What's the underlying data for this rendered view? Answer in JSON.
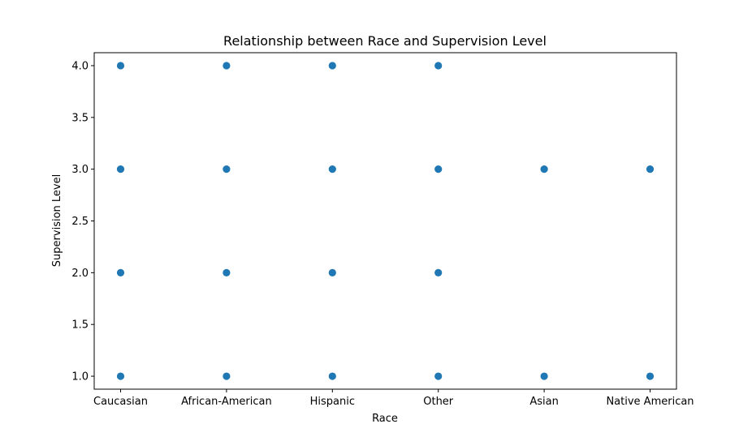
{
  "chart_data": {
    "type": "scatter",
    "title": "Relationship between Race and Supervision Level",
    "xlabel": "Race",
    "ylabel": "Supervision Level",
    "categories": [
      "Caucasian",
      "African-American",
      "Hispanic",
      "Other",
      "Asian",
      "Native American"
    ],
    "y_ticks": [
      "1.0",
      "1.5",
      "2.0",
      "2.5",
      "3.0",
      "3.5",
      "4.0"
    ],
    "ylim": [
      0.875,
      4.125
    ],
    "grid": false,
    "legend": "none",
    "marker_color": "#1f77b4",
    "series": [
      {
        "points": [
          {
            "x": "Caucasian",
            "y": 4.0
          },
          {
            "x": "Caucasian",
            "y": 3.0
          },
          {
            "x": "Caucasian",
            "y": 2.0
          },
          {
            "x": "Caucasian",
            "y": 1.0
          },
          {
            "x": "African-American",
            "y": 4.0
          },
          {
            "x": "African-American",
            "y": 3.0
          },
          {
            "x": "African-American",
            "y": 2.0
          },
          {
            "x": "African-American",
            "y": 1.0
          },
          {
            "x": "Hispanic",
            "y": 4.0
          },
          {
            "x": "Hispanic",
            "y": 3.0
          },
          {
            "x": "Hispanic",
            "y": 2.0
          },
          {
            "x": "Hispanic",
            "y": 1.0
          },
          {
            "x": "Other",
            "y": 4.0
          },
          {
            "x": "Other",
            "y": 3.0
          },
          {
            "x": "Other",
            "y": 2.0
          },
          {
            "x": "Other",
            "y": 1.0
          },
          {
            "x": "Asian",
            "y": 3.0
          },
          {
            "x": "Asian",
            "y": 1.0
          },
          {
            "x": "Native American",
            "y": 3.0
          },
          {
            "x": "Native American",
            "y": 1.0
          }
        ]
      }
    ]
  }
}
